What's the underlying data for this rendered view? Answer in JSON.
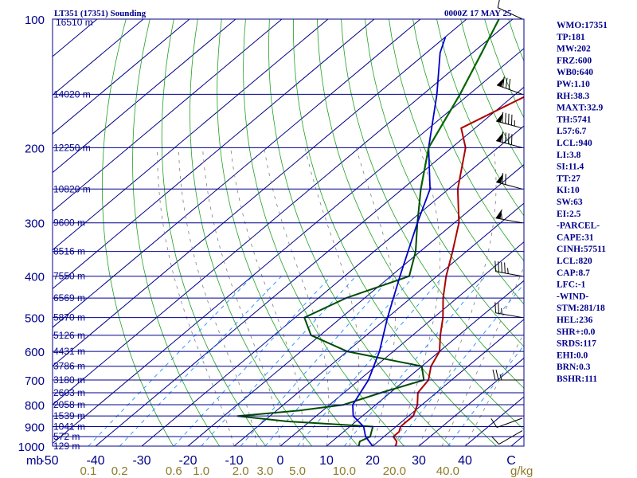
{
  "header": {
    "title_left": "LT351 (17351) Sounding",
    "title_right": "0000Z 17 MAY 25"
  },
  "colors": {
    "axis": "#00008b",
    "isotherm": "#00008b",
    "dry_adiabat": "#20a020",
    "moist_adiabat": "#808080",
    "mixing_ratio": "#1e90ff",
    "temperature": "#b00000",
    "dewpoint": "#004d00",
    "parcel": "#006400",
    "wetbulb": "#0000cc"
  },
  "chart_data": {
    "type": "line",
    "subtype": "skew-T log-P sounding",
    "pressure_levels": [
      "100",
      "200",
      "300",
      "400",
      "500",
      "600",
      "700",
      "800",
      "900",
      "1000"
    ],
    "pressure_values": [
      100,
      200,
      300,
      400,
      500,
      600,
      700,
      800,
      900,
      1000
    ],
    "height_labels": [
      {
        "p": 150,
        "label": "14020 m"
      },
      {
        "p": 200,
        "label": "12250 m"
      },
      {
        "p": 250,
        "label": "10820 m"
      },
      {
        "p": 300,
        "label": "9600 m"
      },
      {
        "p": 350,
        "label": "8516 m"
      },
      {
        "p": 400,
        "label": "7550 m"
      },
      {
        "p": 450,
        "label": "6569 m"
      },
      {
        "p": 500,
        "label": "5870 m"
      },
      {
        "p": 550,
        "label": "5126 m"
      },
      {
        "p": 600,
        "label": "4431 m"
      },
      {
        "p": 650,
        "label": "3786 m"
      },
      {
        "p": 700,
        "label": "3180 m"
      },
      {
        "p": 750,
        "label": "2603 m"
      },
      {
        "p": 800,
        "label": "2058 m"
      },
      {
        "p": 850,
        "label": "1539 m"
      },
      {
        "p": 900,
        "label": "1041 m"
      },
      {
        "p": 950,
        "label": "572 m"
      },
      {
        "p": 1000,
        "label": "129 m"
      }
    ],
    "top_height_label": "16510 m",
    "temp_ticks": [
      {
        "t": -50,
        "label": "-50"
      },
      {
        "t": -40,
        "label": "-40"
      },
      {
        "t": -30,
        "label": "-30"
      },
      {
        "t": -20,
        "label": "-20"
      },
      {
        "t": -10,
        "label": "-10"
      },
      {
        "t": 0,
        "label": "0"
      },
      {
        "t": 10,
        "label": "10"
      },
      {
        "t": 20,
        "label": "20"
      },
      {
        "t": 30,
        "label": "30"
      },
      {
        "t": 40,
        "label": "40"
      },
      {
        "t": 50,
        "label": "C"
      }
    ],
    "pressure_unit": "mb",
    "mixing_ratio_unit": "g/kg",
    "mixing_ratio_ticks": [
      "0.1",
      "0.2",
      "0.6",
      "1.0",
      "2.0",
      "3.0",
      "5.0",
      "10.0",
      "20.0",
      "40.0"
    ],
    "mixing_ratio_values": [
      0.1,
      0.2,
      0.6,
      1.0,
      2.0,
      3.0,
      5.0,
      10.0,
      20.0,
      40.0
    ],
    "series": [
      {
        "name": "temperature",
        "points": [
          [
            1000,
            25
          ],
          [
            975,
            24
          ],
          [
            950,
            22
          ],
          [
            925,
            22
          ],
          [
            900,
            21
          ],
          [
            875,
            21
          ],
          [
            850,
            21
          ],
          [
            800,
            19
          ],
          [
            750,
            16
          ],
          [
            700,
            15
          ],
          [
            650,
            12
          ],
          [
            600,
            10
          ],
          [
            550,
            6
          ],
          [
            500,
            2
          ],
          [
            450,
            -3
          ],
          [
            400,
            -8
          ],
          [
            350,
            -13
          ],
          [
            300,
            -19
          ],
          [
            250,
            -28
          ],
          [
            200,
            -37
          ],
          [
            180,
            -43
          ],
          [
            150,
            -37
          ],
          [
            120,
            -41
          ],
          [
            100,
            -53
          ]
        ]
      },
      {
        "name": "dewpoint",
        "points": [
          [
            1000,
            17
          ],
          [
            975,
            16
          ],
          [
            950,
            17
          ],
          [
            925,
            16
          ],
          [
            900,
            15
          ],
          [
            875,
            -5
          ],
          [
            850,
            -17
          ],
          [
            825,
            -5
          ],
          [
            800,
            3
          ],
          [
            750,
            8
          ],
          [
            700,
            14
          ],
          [
            650,
            10
          ],
          [
            600,
            -10
          ],
          [
            550,
            -22
          ],
          [
            500,
            -28
          ],
          [
            450,
            -24
          ],
          [
            400,
            -16
          ],
          [
            350,
            -21
          ],
          [
            300,
            -28
          ],
          [
            250,
            -36
          ]
        ]
      },
      {
        "name": "wetbulb",
        "points": [
          [
            1000,
            20
          ],
          [
            950,
            16
          ],
          [
            900,
            13
          ],
          [
            850,
            8
          ],
          [
            800,
            5
          ],
          [
            700,
            2
          ],
          [
            600,
            -3
          ],
          [
            500,
            -10
          ],
          [
            400,
            -18
          ],
          [
            300,
            -28
          ],
          [
            250,
            -34
          ],
          [
            200,
            -45
          ],
          [
            150,
            -57
          ],
          [
            120,
            -67
          ],
          [
            110,
            -70
          ]
        ]
      },
      {
        "name": "parcel",
        "points": [
          [
            250,
            -36
          ],
          [
            200,
            -45
          ],
          [
            150,
            -52
          ],
          [
            120,
            -58
          ],
          [
            100,
            -63
          ]
        ]
      }
    ]
  },
  "wind_barbs": [
    {
      "p": 100,
      "dir": 295,
      "spd": 10
    },
    {
      "p": 150,
      "dir": 290,
      "spd": 80
    },
    {
      "p": 180,
      "dir": 285,
      "spd": 95
    },
    {
      "p": 200,
      "dir": 285,
      "spd": 90
    },
    {
      "p": 250,
      "dir": 285,
      "spd": 70
    },
    {
      "p": 300,
      "dir": 280,
      "spd": 55
    },
    {
      "p": 400,
      "dir": 280,
      "spd": 45
    },
    {
      "p": 500,
      "dir": 280,
      "spd": 25
    },
    {
      "p": 700,
      "dir": 270,
      "spd": 25
    },
    {
      "p": 860,
      "dir": 250,
      "spd": 10
    },
    {
      "p": 920,
      "dir": 240,
      "spd": 10
    }
  ],
  "stats": [
    "WMO:17351",
    "TP:181",
    "MW:202",
    "FRZ:600",
    "WB0:640",
    "PW:1.10",
    "RH:38.3",
    "MAXT:32.9",
    "TH:5741",
    "L57:6.7",
    "LCL:940",
    "LI:3.8",
    "SI:11.4",
    "TT:27",
    "KI:10",
    "SW:63",
    "EI:2.5",
    "-PARCEL-",
    "CAPE:31",
    "CINH:57511",
    "LCL:820",
    "CAP:8.7",
    "LFC:-1",
    "-WIND-",
    "STM:281/18",
    "HEL:236",
    "SHR+:0.0",
    "SRDS:117",
    "EHI:0.0",
    "BRN:0.3",
    "BSHR:111"
  ]
}
